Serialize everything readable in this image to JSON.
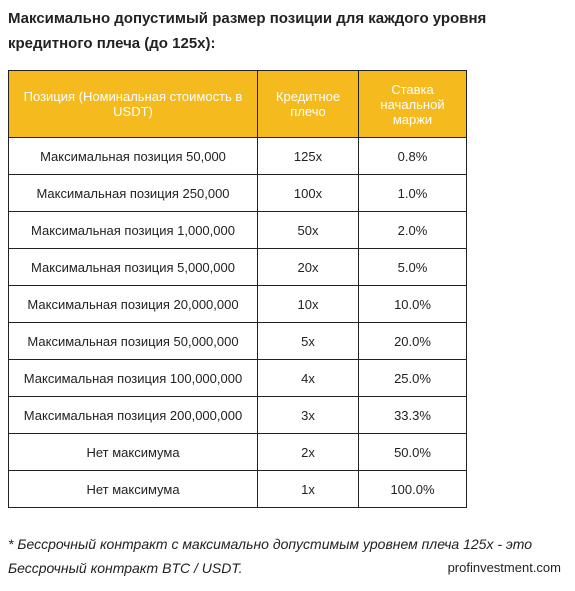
{
  "heading": "Максимально допустимый размер позиции для каждого уровня кредитного плеча (до 125x):",
  "table": {
    "headers": {
      "position": "Позиция  (Номинальная стоимость в USDT)",
      "leverage": "Кредитное плечо",
      "margin": "Ставка начальной маржи"
    },
    "rows": [
      {
        "position": "Максимальная позиция 50,000",
        "leverage": "125x",
        "margin": "0.8%"
      },
      {
        "position": "Максимальная позиция 250,000",
        "leverage": "100x",
        "margin": "1.0%"
      },
      {
        "position": "Максимальная позиция 1,000,000",
        "leverage": "50x",
        "margin": "2.0%"
      },
      {
        "position": "Максимальная позиция 5,000,000",
        "leverage": "20x",
        "margin": "5.0%"
      },
      {
        "position": "Максимальная позиция 20,000,000",
        "leverage": "10x",
        "margin": "10.0%"
      },
      {
        "position": "Максимальная позиция 50,000,000",
        "leverage": "5x",
        "margin": "20.0%"
      },
      {
        "position": "Максимальная позиция 100,000,000",
        "leverage": "4x",
        "margin": "25.0%"
      },
      {
        "position": "Максимальная позиция 200,000,000",
        "leverage": "3x",
        "margin": "33.3%"
      },
      {
        "position": "Нет максимума",
        "leverage": "2x",
        "margin": "50.0%"
      },
      {
        "position": "Нет максимума",
        "leverage": "1x",
        "margin": "100.0%"
      }
    ]
  },
  "footnote": "* Бессрочный контракт с максимально допустимым уровнем плеча 125x - это Бессрочный контракт BTC / USDT.",
  "watermark": "profinvestment.com",
  "colors": {
    "header_bg": "#f4ba1e",
    "header_text": "#ffffff",
    "border": "#222222"
  }
}
